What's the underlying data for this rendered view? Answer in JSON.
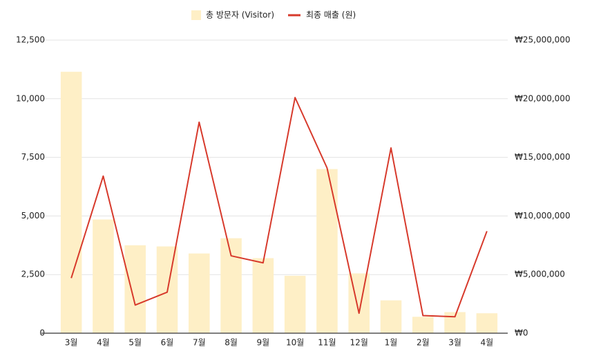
{
  "chart_data": {
    "type": "bar-line",
    "categories": [
      "3월",
      "4월",
      "5월",
      "6월",
      "7월",
      "8월",
      "9월",
      "10월",
      "11월",
      "12월",
      "1월",
      "2월",
      "3월",
      "4월"
    ],
    "series": [
      {
        "name": "총 방문자 (Visitor)",
        "type": "bar",
        "color": "#feefc6",
        "values": [
          11150,
          4850,
          3750,
          3700,
          3400,
          4050,
          3200,
          2450,
          7000,
          2550,
          1400,
          700,
          900,
          850
        ]
      },
      {
        "name": "최종 매출 (원)",
        "type": "line",
        "axis": "y2",
        "color": "#d7392b",
        "values": [
          4700000,
          13400000,
          2400000,
          3500000,
          18000000,
          6600000,
          6000000,
          20100000,
          14100000,
          1700000,
          15800000,
          1500000,
          1400000,
          8700000
        ]
      }
    ],
    "ylim": [
      0,
      12500
    ],
    "yticks": [
      0,
      {
        "value": 2500,
        "label": "2,500"
      },
      {
        "value": 5000,
        "label": "5,000"
      },
      {
        "value": 7500,
        "label": "7,500"
      },
      {
        "value": 10000,
        "label": "10,000"
      },
      {
        "value": 12500,
        "label": "12,500"
      }
    ],
    "y2lim": [
      0,
      25000000
    ],
    "y2ticks": [
      {
        "value": 0,
        "label": "₩0"
      },
      {
        "value": 5000000,
        "label": "₩5,000,000"
      },
      {
        "value": 10000000,
        "label": "₩10,000,000"
      },
      {
        "value": 15000000,
        "label": "₩15,000,000"
      },
      {
        "value": 20000000,
        "label": "₩20,000,000"
      },
      {
        "value": 25000000,
        "label": "₩25,000,000"
      }
    ],
    "grid": true,
    "legend": "top"
  }
}
